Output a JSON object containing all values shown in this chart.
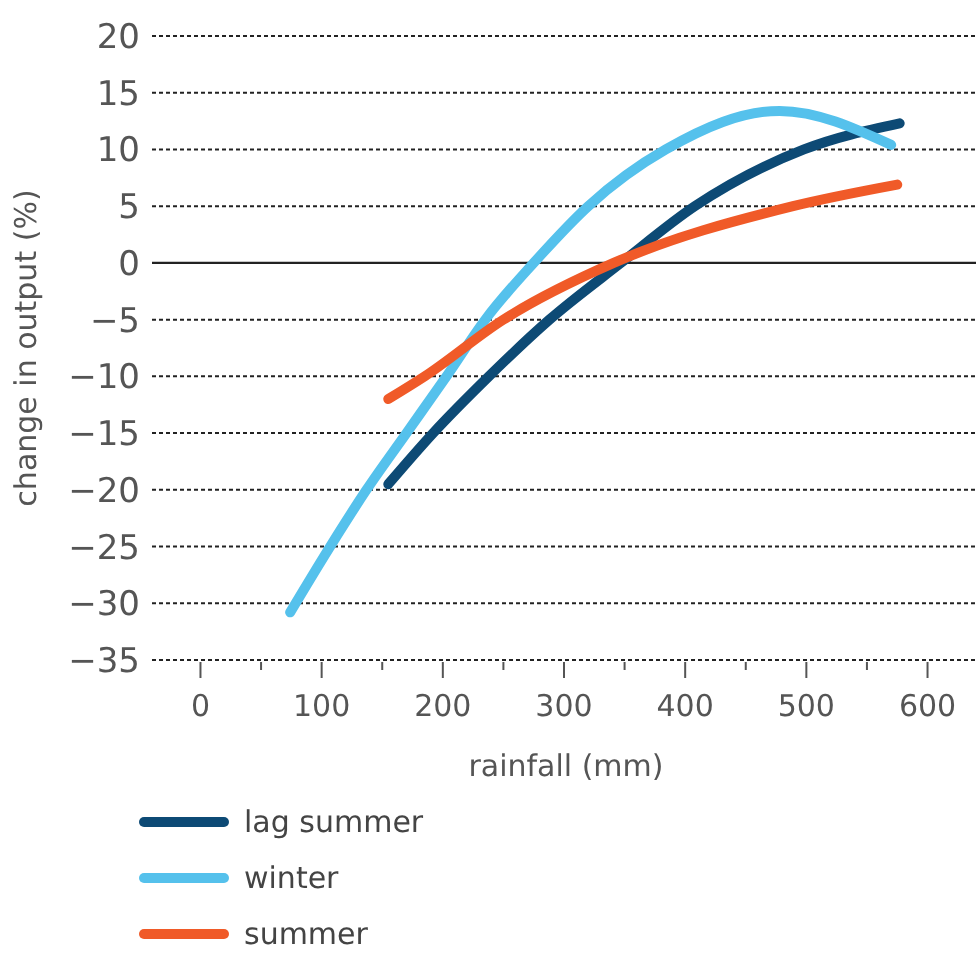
{
  "chart_data": {
    "type": "line",
    "xlabel": "rainfall (mm)",
    "ylabel": "change in output  (%)",
    "xlim": [
      -40,
      640
    ],
    "ylim": [
      -35,
      20
    ],
    "xticks": [
      0,
      {
        "value": 50,
        "label": null
      },
      100,
      {
        "value": 150,
        "label": null
      },
      200,
      {
        "value": 250,
        "label": null
      },
      300,
      {
        "value": 350,
        "label": null
      },
      400,
      {
        "value": 450,
        "label": null
      },
      500,
      {
        "value": 550,
        "label": null
      },
      600
    ],
    "yticks": [
      -35,
      -30,
      -25,
      -20,
      -15,
      -10,
      -5,
      0,
      5,
      10,
      15,
      20
    ],
    "grid": "y",
    "legend": "bottom",
    "line_style": "solid",
    "marker": "none",
    "series": [
      {
        "name": "lag summer",
        "color": "#0d4a75",
        "x": [
          155,
          192,
          238,
          288,
          347,
          408,
          498,
          577
        ],
        "values": [
          -19.5,
          -15,
          -10,
          -5,
          0,
          5,
          10,
          12.3
        ]
      },
      {
        "name": "winter",
        "color": "#55c1ec",
        "x": [
          74,
          107,
          137,
          170,
          203,
          235,
          275,
          320,
          384,
          478,
          570
        ],
        "values": [
          -30.8,
          -25,
          -20,
          -15,
          -10,
          -5,
          0,
          5,
          10,
          13.4,
          10.4
        ]
      },
      {
        "name": "summer",
        "color": "#f05a28",
        "x": [
          155,
          185,
          250,
          341,
          489,
          575
        ],
        "values": [
          -12,
          -10,
          -5,
          0,
          5,
          6.9
        ]
      }
    ]
  }
}
